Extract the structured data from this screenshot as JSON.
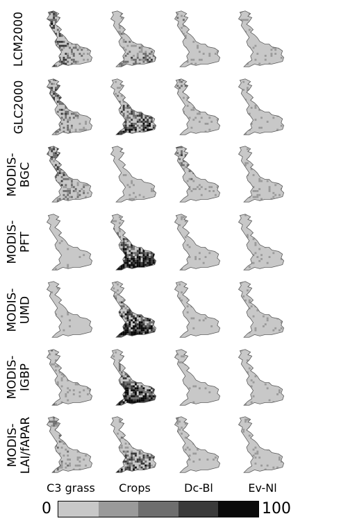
{
  "rows": [
    {
      "label": "LCM2000"
    },
    {
      "label": "GLC2000"
    },
    {
      "label": "MODIS-\nBGC"
    },
    {
      "label": "MODIS-\nPFT"
    },
    {
      "label": "MODIS-\nUMD"
    },
    {
      "label": "MODIS-\nIGBP"
    },
    {
      "label": "MODIS-\nLAI/fAPAR"
    }
  ],
  "columns": [
    "C3 grass",
    "Crops",
    "Dc-Bl",
    "Ev-Nl"
  ],
  "colorbar": {
    "min_label": "0",
    "max_label": "100",
    "colors": [
      "#c8c8c8",
      "#9a9a9a",
      "#6e6e6e",
      "#3a3a3a",
      "#0a0a0a"
    ]
  },
  "intensity": [
    [
      0.55,
      0.35,
      0.25,
      0.08
    ],
    [
      0.5,
      0.6,
      0.3,
      0.1
    ],
    [
      0.5,
      0.1,
      0.45,
      0.15
    ],
    [
      0.05,
      0.8,
      0.15,
      0.1
    ],
    [
      0.05,
      0.8,
      0.15,
      0.1
    ],
    [
      0.2,
      0.75,
      0.1,
      0.1
    ],
    [
      0.3,
      0.5,
      0.2,
      0.1
    ]
  ]
}
